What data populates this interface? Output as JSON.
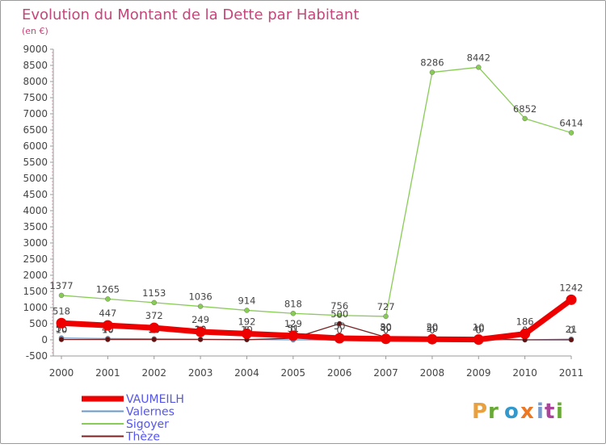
{
  "chart_data": {
    "type": "line",
    "title": "Evolution du Montant de la Dette par Habitant",
    "subtitle": "(en €)",
    "x": [
      "2000",
      "2001",
      "2002",
      "2003",
      "2004",
      "2005",
      "2006",
      "2007",
      "2008",
      "2009",
      "2010",
      "2011"
    ],
    "ylim": [
      -500,
      9000
    ],
    "yticks": [
      -500,
      0,
      500,
      1000,
      1500,
      2000,
      2500,
      3000,
      3500,
      4000,
      4500,
      5000,
      5500,
      6000,
      6500,
      7000,
      7500,
      8000,
      8500,
      9000
    ],
    "grid": false,
    "legend_position": "bottom-left",
    "series": [
      {
        "name": "VAUMEILH",
        "color": "#ee0000",
        "values": [
          518,
          447,
          372,
          249,
          192,
          129,
          50,
          30,
          20,
          10,
          186,
          1242
        ]
      },
      {
        "name": "Valernes",
        "color": "#6699cc",
        "values": [
          56,
          40,
          30,
          20,
          10,
          0,
          0,
          0,
          0,
          0,
          0,
          21
        ]
      },
      {
        "name": "Sigoyer",
        "color": "#88cc55",
        "values": [
          1377,
          1265,
          1153,
          1036,
          914,
          818,
          756,
          727,
          8286,
          8442,
          6852,
          6414
        ]
      },
      {
        "name": "Thèze",
        "color": "#772222",
        "values": [
          10,
          10,
          10,
          10,
          5,
          51,
          500,
          80,
          50,
          40,
          0,
          0
        ]
      }
    ]
  },
  "logo": {
    "text": "Proxiti",
    "colors": [
      "#e8a040",
      "#66aa33",
      "#3399cc",
      "#ee7722",
      "#7799cc",
      "#aa4499",
      "#66aa33"
    ]
  }
}
